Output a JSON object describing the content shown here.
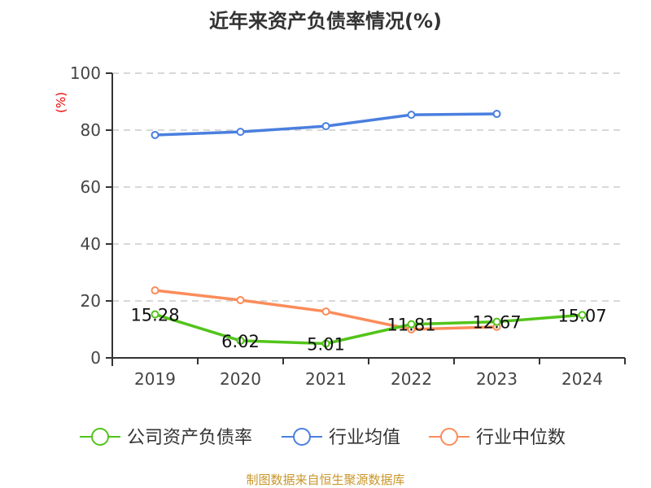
{
  "chart_data": {
    "type": "line",
    "title": "近年来资产负债率情况(%)",
    "ylabel": "(%)",
    "xlabel": "",
    "categories": [
      "2019",
      "2020",
      "2021",
      "2022",
      "2023",
      "2024"
    ],
    "ylim": [
      0,
      100
    ],
    "yticks": [
      0,
      20,
      40,
      60,
      80,
      100
    ],
    "grid": true,
    "legend_position": "bottom",
    "series": [
      {
        "name": "公司资产负债率",
        "color": "#52c41a",
        "values": [
          15.28,
          6.02,
          5.01,
          11.81,
          12.67,
          15.07
        ],
        "labels": [
          "15.28",
          "6.02",
          "5.01",
          "11.81",
          "12.67",
          "15.07"
        ]
      },
      {
        "name": "行业均值",
        "color": "#4a7fdf",
        "values": [
          78.3,
          79.4,
          81.4,
          85.4,
          85.7,
          null
        ]
      },
      {
        "name": "行业中位数",
        "color": "#fb8c5a",
        "values": [
          23.7,
          20.3,
          16.3,
          10.0,
          10.9,
          null
        ]
      }
    ]
  },
  "source": "制图数据来自恒生聚源数据库"
}
